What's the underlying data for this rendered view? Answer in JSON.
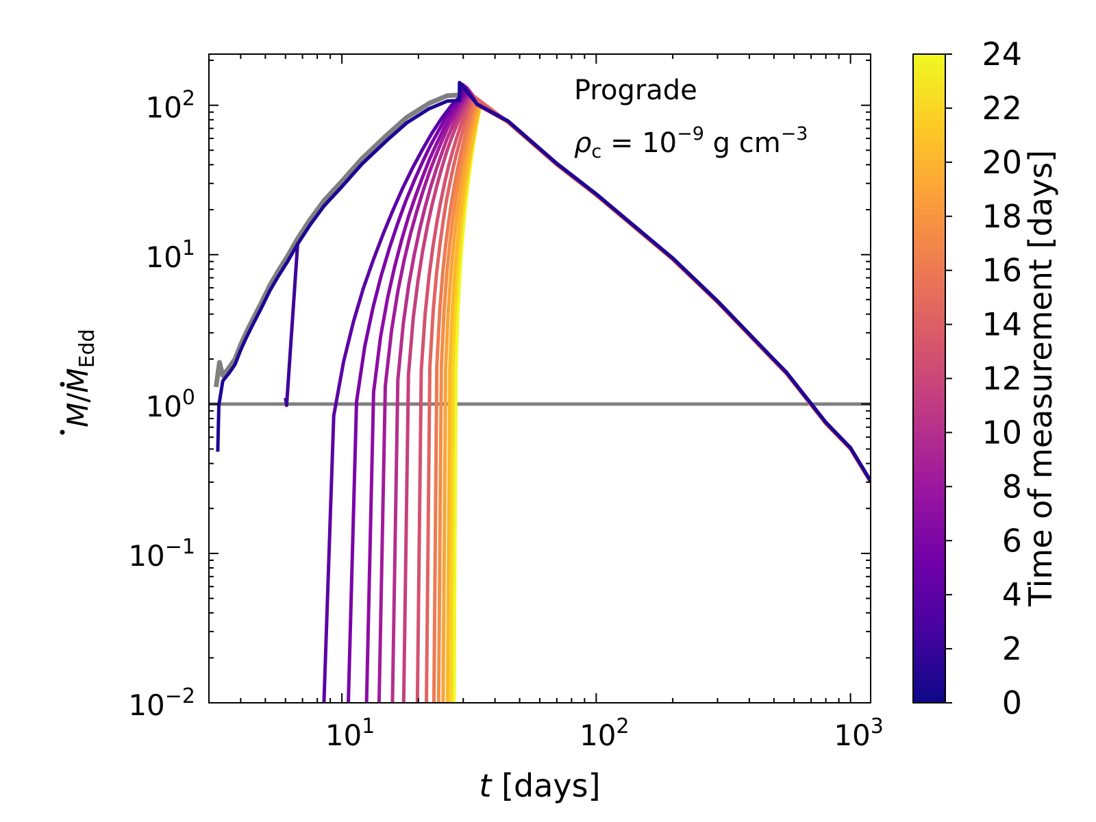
{
  "chart_data": {
    "type": "line",
    "xscale": "log",
    "yscale": "log",
    "xlim": [
      3,
      1200
    ],
    "ylim": [
      0.01,
      220
    ],
    "xlabel": "t [days]",
    "ylabel": "Ṁ/Ṁ_Edd",
    "x_ticks": [
      {
        "value": 10,
        "base": "10",
        "exp": "1"
      },
      {
        "value": 100,
        "base": "10",
        "exp": "2"
      },
      {
        "value": 1000,
        "base": "10",
        "exp": "3"
      }
    ],
    "y_ticks": [
      {
        "value": 0.01,
        "base": "10",
        "exp": "−2"
      },
      {
        "value": 0.1,
        "base": "10",
        "exp": "−1"
      },
      {
        "value": 1,
        "base": "10",
        "exp": "0"
      },
      {
        "value": 10,
        "base": "10",
        "exp": "1"
      },
      {
        "value": 100,
        "base": "10",
        "exp": "2"
      }
    ],
    "annotation": {
      "line1": "Prograde",
      "rho_symbol": "ρ",
      "rho_sub": "c",
      "rho_eq": " = 10",
      "rho_exp": "−9",
      "rho_units": " g cm",
      "rho_units_exp": "−3"
    },
    "reference_line": {
      "y": 1,
      "color": "#808080"
    },
    "reference_curve": {
      "color": "#808080",
      "points": [
        [
          3.2,
          1.3
        ],
        [
          3.3,
          1.9
        ],
        [
          3.4,
          1.55
        ],
        [
          3.6,
          1.75
        ],
        [
          3.8,
          2.0
        ],
        [
          4.0,
          2.5
        ],
        [
          4.2,
          3.0
        ],
        [
          4.5,
          3.8
        ],
        [
          4.8,
          4.7
        ],
        [
          5.2,
          6.2
        ],
        [
          5.6,
          7.7
        ],
        [
          6.1,
          9.7
        ],
        [
          6.7,
          12.8
        ],
        [
          7.5,
          17.2
        ],
        [
          8.5,
          23
        ],
        [
          10,
          31
        ],
        [
          12,
          44
        ],
        [
          15,
          63
        ],
        [
          18,
          83
        ],
        [
          22,
          103
        ],
        [
          26,
          116
        ],
        [
          29,
          117
        ]
      ]
    },
    "decline": {
      "points": [
        [
          34,
          100
        ],
        [
          45,
          77
        ],
        [
          70,
          40
        ],
        [
          100,
          25
        ],
        [
          200,
          9.3
        ],
        [
          300,
          4.8
        ],
        [
          500,
          1.95
        ],
        [
          560,
          1.6
        ],
        [
          800,
          0.74
        ],
        [
          1000,
          0.5
        ],
        [
          1200,
          0.3
        ]
      ]
    },
    "colorbar": {
      "label": "Time of measurement [days]",
      "min": 0,
      "max": 24,
      "ticks": [
        "0",
        "2",
        "4",
        "6",
        "8",
        "10",
        "12",
        "14",
        "16",
        "18",
        "20",
        "22",
        "24"
      ],
      "colormap": "plasma",
      "gradient_stops": [
        "#0d0887",
        "#46039f",
        "#7201a8",
        "#9c179e",
        "#bd3786",
        "#d8576b",
        "#ed7953",
        "#fb9f3a",
        "#fdca26",
        "#f0f921"
      ]
    },
    "series": [
      {
        "measurement_time": 1,
        "color": "#1e0694",
        "onset_t": 3.25,
        "onset_y": 0.48,
        "peak_t": 29.0,
        "peak_y": 142
      },
      {
        "measurement_time": 3,
        "color": "#3e049c",
        "onset_t": 6.0,
        "onset_y": 1.1,
        "peak_t": 29.0,
        "peak_y": 141
      },
      {
        "measurement_time": 5,
        "color": "#5b01a5",
        "onset_t": 8.5,
        "onset_y": 0.01,
        "peak_t": 29.5,
        "peak_y": 139
      },
      {
        "measurement_time": 7,
        "color": "#7a02a8",
        "onset_t": 10.6,
        "onset_y": 0.01,
        "peak_t": 30.0,
        "peak_y": 137
      },
      {
        "measurement_time": 8,
        "color": "#8e0ca4",
        "onset_t": 12.5,
        "onset_y": 0.01,
        "peak_t": 30.5,
        "peak_y": 134
      },
      {
        "measurement_time": 9,
        "color": "#a11b9b",
        "onset_t": 14.0,
        "onset_y": 0.01,
        "peak_t": 31.0,
        "peak_y": 131
      },
      {
        "measurement_time": 11,
        "color": "#b52f8c",
        "onset_t": 15.8,
        "onset_y": 0.01,
        "peak_t": 31.5,
        "peak_y": 127
      },
      {
        "measurement_time": 12,
        "color": "#c5407e",
        "onset_t": 17.5,
        "onset_y": 0.01,
        "peak_t": 32.0,
        "peak_y": 123
      },
      {
        "measurement_time": 14,
        "color": "#d45270",
        "onset_t": 19.8,
        "onset_y": 0.01,
        "peak_t": 32.5,
        "peak_y": 119
      },
      {
        "measurement_time": 15,
        "color": "#e16462",
        "onset_t": 21.5,
        "onset_y": 0.01,
        "peak_t": 33.0,
        "peak_y": 115
      },
      {
        "measurement_time": 17,
        "color": "#ed7953",
        "onset_t": 23.0,
        "onset_y": 0.01,
        "peak_t": 33.5,
        "peak_y": 111
      },
      {
        "measurement_time": 18,
        "color": "#f58c45",
        "onset_t": 24.0,
        "onset_y": 0.01,
        "peak_t": 34.0,
        "peak_y": 108
      },
      {
        "measurement_time": 19,
        "color": "#fba238",
        "onset_t": 25.0,
        "onset_y": 0.01,
        "peak_t": 34.5,
        "peak_y": 105
      },
      {
        "measurement_time": 21,
        "color": "#fdb82a",
        "onset_t": 26.0,
        "onset_y": 0.01,
        "peak_t": 35.0,
        "peak_y": 102
      },
      {
        "measurement_time": 22,
        "color": "#f8d424",
        "onset_t": 26.8,
        "onset_y": 0.01,
        "peak_t": 35.0,
        "peak_y": 100
      },
      {
        "measurement_time": 24,
        "color": "#f0f921",
        "onset_t": 27.6,
        "onset_y": 0.01,
        "peak_t": 35.0,
        "peak_y": 99
      }
    ]
  }
}
